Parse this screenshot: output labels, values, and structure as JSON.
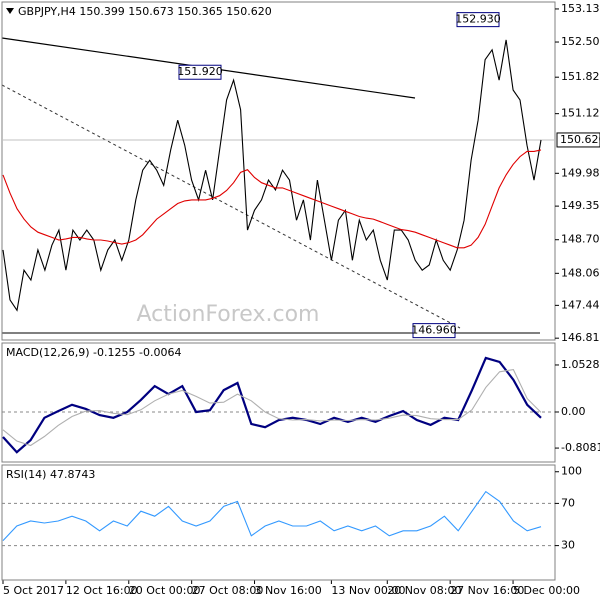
{
  "chart_data": [
    {
      "type": "line",
      "title": "GBPJPY,H4  150.399 150.673 150.365 150.620",
      "watermark": "ActionForex.com",
      "categories": [
        "5 Oct 2017",
        null,
        null,
        null,
        null,
        null,
        null,
        null,
        null,
        "12 Oct 16:00",
        null,
        null,
        null,
        null,
        null,
        null,
        null,
        null,
        "20 Oct 00:00",
        null,
        null,
        null,
        null,
        null,
        null,
        null,
        null,
        "27 Oct 08:00",
        null,
        null,
        null,
        null,
        null,
        null,
        null,
        null,
        "3 Nov 16:00",
        null,
        null,
        null,
        null,
        null,
        null,
        null,
        null,
        null,
        null,
        "13 Nov 00:00",
        null,
        null,
        null,
        null,
        null,
        null,
        null,
        "20 Nov 08:00",
        null,
        null,
        null,
        null,
        null,
        null,
        null,
        null,
        "27 Nov 16:00",
        null,
        null,
        null,
        null,
        null,
        null,
        null,
        null,
        "5 Dec 00:00",
        null,
        null,
        null,
        null
      ],
      "series": [
        {
          "color": "#000000",
          "values": [
            148.51,
            147.55,
            147.35,
            148.12,
            147.93,
            148.51,
            148.12,
            148.6,
            148.89,
            148.12,
            148.89,
            148.7,
            148.89,
            148.7,
            148.12,
            148.51,
            148.7,
            148.31,
            148.7,
            149.47,
            150.04,
            150.23,
            150.04,
            149.75,
            150.43,
            151.0,
            150.52,
            149.85,
            149.47,
            150.04,
            149.47,
            150.43,
            151.39,
            151.77,
            151.2,
            148.89,
            149.27,
            149.47,
            149.85,
            149.66,
            150.04,
            149.85,
            149.08,
            149.47,
            148.7,
            149.85,
            149.08,
            148.31,
            149.08,
            149.27,
            148.31,
            149.08,
            148.7,
            148.89,
            148.31,
            147.93,
            148.89,
            148.89,
            148.7,
            148.31,
            148.12,
            148.22,
            148.7,
            148.31,
            148.12,
            148.51,
            149.08,
            150.23,
            151.0,
            152.16,
            152.35,
            151.77,
            152.54,
            151.58,
            151.39,
            150.52,
            149.85,
            150.62
          ]
        },
        {
          "color": "#e00000",
          "values": [
            149.95,
            149.6,
            149.3,
            149.1,
            148.95,
            148.85,
            148.8,
            148.75,
            148.7,
            148.72,
            148.75,
            148.75,
            148.72,
            148.7,
            148.7,
            148.68,
            148.65,
            148.62,
            148.65,
            148.7,
            148.8,
            148.95,
            149.1,
            149.2,
            149.3,
            149.4,
            149.45,
            149.47,
            149.47,
            149.47,
            149.5,
            149.55,
            149.65,
            149.8,
            150.0,
            150.05,
            149.9,
            149.8,
            149.75,
            149.7,
            149.7,
            149.65,
            149.6,
            149.55,
            149.5,
            149.45,
            149.4,
            149.35,
            149.3,
            149.25,
            149.2,
            149.15,
            149.12,
            149.1,
            149.05,
            149.0,
            148.95,
            148.9,
            148.88,
            148.85,
            148.8,
            148.75,
            148.7,
            148.65,
            148.6,
            148.55,
            148.55,
            148.6,
            148.75,
            149.0,
            149.35,
            149.7,
            149.95,
            150.15,
            150.3,
            150.4,
            150.4,
            150.43
          ]
        }
      ],
      "ylim": [
        146.78,
        153.23
      ],
      "yticks": [
        153.135,
        {
          "value": 152.5,
          "label": "152.500"
        },
        151.825,
        151.125,
        {
          "value": 149.98,
          "label": "149.980"
        },
        {
          "value": 149.35,
          "label": "149.350"
        },
        148.705,
        {
          "value": 148.06,
          "label": "148.060"
        },
        147.445,
        146.815
      ],
      "annotations": [
        {
          "value": 151.92,
          "label": "151.920"
        },
        {
          "value": 152.93,
          "label": "152.930"
        },
        {
          "value": 146.96,
          "label": "146.960"
        }
      ],
      "current": {
        "value": 150.62,
        "label": "150.620"
      }
    },
    {
      "type": "line",
      "title": "MACD(12,26,9) -0.1255 -0.0064",
      "series": [
        {
          "color": "#000080",
          "values": [
            -0.56,
            -0.9,
            -0.63,
            -0.13,
            0.02,
            0.16,
            0.07,
            -0.07,
            -0.13,
            0.0,
            0.27,
            0.58,
            0.4,
            0.58,
            0.0,
            0.04,
            0.49,
            0.65,
            -0.27,
            -0.34,
            -0.18,
            -0.13,
            -0.18,
            -0.27,
            -0.13,
            -0.22,
            -0.13,
            -0.22,
            -0.09,
            0.02,
            -0.18,
            -0.29,
            -0.13,
            -0.18,
            0.49,
            1.21,
            1.12,
            0.72,
            0.16,
            -0.13
          ]
        },
        {
          "color": "#b0b0b0",
          "values": [
            -0.4,
            -0.65,
            -0.75,
            -0.55,
            -0.3,
            -0.1,
            0.02,
            0.03,
            -0.03,
            -0.06,
            0.05,
            0.25,
            0.4,
            0.48,
            0.35,
            0.2,
            0.22,
            0.4,
            0.25,
            0.0,
            -0.15,
            -0.18,
            -0.17,
            -0.2,
            -0.18,
            -0.19,
            -0.17,
            -0.18,
            -0.14,
            -0.07,
            -0.08,
            -0.15,
            -0.17,
            -0.17,
            0.05,
            0.55,
            0.9,
            0.95,
            0.3,
            -0.01
          ]
        }
      ],
      "ylim": [
        -1.12,
        1.5
      ],
      "yticks": [
        1.0528,
        {
          "value": 0,
          "label": "0.00"
        },
        -0.8081
      ],
      "reference_lines": [
        0
      ]
    },
    {
      "type": "line",
      "title": "RSI(14) 47.8743",
      "series": [
        {
          "color": "#3399ff",
          "values": [
            34.7,
            48.6,
            53.3,
            51.4,
            53.3,
            57.9,
            53.3,
            44.0,
            53.3,
            48.6,
            62.6,
            57.9,
            67.2,
            53.3,
            48.6,
            53.3,
            67.2,
            71.9,
            39.3,
            48.6,
            53.3,
            48.6,
            48.6,
            53.3,
            44.0,
            48.6,
            44.0,
            48.6,
            39.3,
            44.0,
            44.0,
            48.6,
            57.9,
            44.0,
            62.6,
            81.2,
            71.9,
            53.3,
            44.0,
            47.8743
          ]
        }
      ],
      "ylim": [
        -2.6,
        104.5
      ],
      "yticks": [
        100,
        70,
        30
      ],
      "reference_lines": [
        70,
        30
      ]
    }
  ]
}
